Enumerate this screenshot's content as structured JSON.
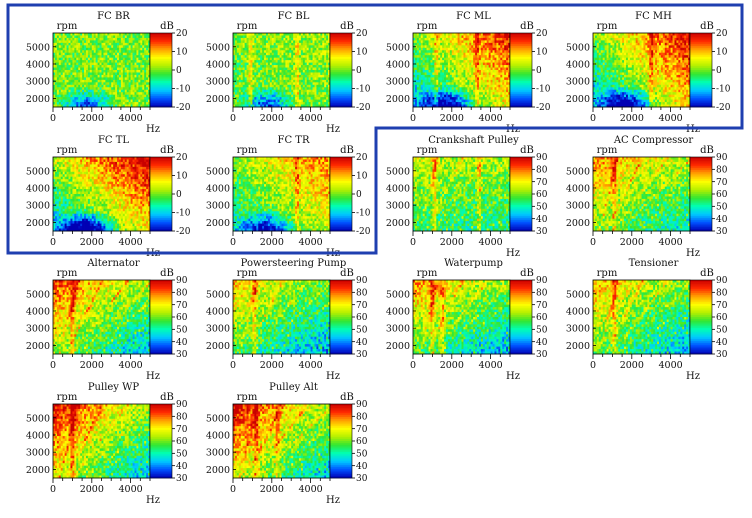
{
  "accent": {
    "highlight_frame": "#1f3fb0"
  },
  "colormap": [
    "#0000b4",
    "#0050ff",
    "#00c8ff",
    "#00ffb4",
    "#32e632",
    "#b4f000",
    "#ffff00",
    "#ffa000",
    "#ff2800",
    "#c80000"
  ],
  "chart_data": [
    {
      "type": "heatmap",
      "title": "FC BR",
      "xlabel": "Hz",
      "ylabel": "rpm",
      "colorbar_label": "dB",
      "x_ticks": [
        0,
        2000,
        4000
      ],
      "y_ticks": [
        2000,
        3000,
        4000,
        5000
      ],
      "xlim": [
        0,
        5000
      ],
      "ylim": [
        1500,
        5800
      ],
      "clim": [
        -20,
        20
      ],
      "colorbar_ticks": [
        -20,
        -10,
        0,
        10,
        20
      ],
      "highlighted": true,
      "pattern": {
        "mean": 0.0,
        "hf": 0.0,
        "hr": 0.0,
        "lowcorner": 0.7,
        "bands": [],
        "orders": 0
      }
    },
    {
      "type": "heatmap",
      "title": "FC BL",
      "xlabel": "Hz",
      "ylabel": "rpm",
      "colorbar_label": "dB",
      "x_ticks": [
        0,
        2000,
        4000
      ],
      "y_ticks": [
        2000,
        3000,
        4000,
        5000
      ],
      "xlim": [
        0,
        5000
      ],
      "ylim": [
        1500,
        5800
      ],
      "clim": [
        -20,
        20
      ],
      "colorbar_ticks": [
        -20,
        -10,
        0,
        10,
        20
      ],
      "highlighted": true,
      "pattern": {
        "mean": 0.0,
        "hf": 0.05,
        "hr": 0.05,
        "lowcorner": 0.7,
        "bands": [
          900,
          3300
        ],
        "orders": 0
      }
    },
    {
      "type": "heatmap",
      "title": "FC ML",
      "xlabel": "Hz",
      "ylabel": "rpm",
      "colorbar_label": "dB",
      "x_ticks": [
        0,
        2000,
        4000
      ],
      "y_ticks": [
        2000,
        3000,
        4000,
        5000
      ],
      "xlim": [
        0,
        5000
      ],
      "ylim": [
        1500,
        5800
      ],
      "clim": [
        -20,
        20
      ],
      "colorbar_ticks": [
        -20,
        -10,
        0,
        10,
        20
      ],
      "highlighted": true,
      "pattern": {
        "mean": 0.08,
        "hf": 0.45,
        "hr": 0.3,
        "lowcorner": 0.9,
        "bands": [
          1200,
          3300
        ],
        "orders": 0
      }
    },
    {
      "type": "heatmap",
      "title": "FC MH",
      "xlabel": "Hz",
      "ylabel": "rpm",
      "colorbar_label": "dB",
      "x_ticks": [
        0,
        2000,
        4000
      ],
      "y_ticks": [
        2000,
        3000,
        4000,
        5000
      ],
      "xlim": [
        0,
        5000
      ],
      "ylim": [
        1500,
        5800
      ],
      "clim": [
        -20,
        20
      ],
      "colorbar_ticks": [
        -20,
        -10,
        0,
        10,
        20
      ],
      "highlighted": true,
      "pattern": {
        "mean": 0.1,
        "hf": 0.5,
        "hr": 0.3,
        "lowcorner": 1.0,
        "bands": [
          3000
        ],
        "orders": 0
      }
    },
    {
      "type": "heatmap",
      "title": "FC TL",
      "xlabel": "Hz",
      "ylabel": "rpm",
      "colorbar_label": "dB",
      "x_ticks": [
        0,
        2000,
        4000
      ],
      "y_ticks": [
        2000,
        3000,
        4000,
        5000
      ],
      "xlim": [
        0,
        5000
      ],
      "ylim": [
        1500,
        5800
      ],
      "clim": [
        -20,
        20
      ],
      "colorbar_ticks": [
        -20,
        -10,
        0,
        10,
        20
      ],
      "highlighted": true,
      "pattern": {
        "mean": 0.12,
        "hf": 0.45,
        "hr": 0.4,
        "lowcorner": 1.0,
        "bands": [],
        "orders": 0
      }
    },
    {
      "type": "heatmap",
      "title": "FC TR",
      "xlabel": "Hz",
      "ylabel": "rpm",
      "colorbar_label": "dB",
      "x_ticks": [
        0,
        2000,
        4000
      ],
      "y_ticks": [
        2000,
        3000,
        4000,
        5000
      ],
      "xlim": [
        0,
        5000
      ],
      "ylim": [
        1500,
        5800
      ],
      "clim": [
        -20,
        20
      ],
      "colorbar_ticks": [
        -20,
        -10,
        0,
        10,
        20
      ],
      "highlighted": true,
      "pattern": {
        "mean": 0.06,
        "hf": 0.3,
        "hr": 0.25,
        "lowcorner": 0.8,
        "bands": [
          3300
        ],
        "orders": 0
      }
    },
    {
      "type": "heatmap",
      "title": "Crankshaft Pulley",
      "xlabel": "Hz",
      "ylabel": "rpm",
      "colorbar_label": "dB",
      "x_ticks": [
        0,
        2000,
        4000
      ],
      "y_ticks": [
        2000,
        3000,
        4000,
        5000
      ],
      "xlim": [
        0,
        5000
      ],
      "ylim": [
        1500,
        5800
      ],
      "clim": [
        30,
        90
      ],
      "colorbar_ticks": [
        30,
        40,
        50,
        60,
        70,
        80,
        90
      ],
      "highlighted": false,
      "pattern": {
        "mean": -0.05,
        "hf": 0.0,
        "hr": 0.2,
        "lowcorner": 0.0,
        "bands": [
          1100,
          3400
        ],
        "orders": 0.25
      }
    },
    {
      "type": "heatmap",
      "title": "AC Compressor",
      "xlabel": "Hz",
      "ylabel": "rpm",
      "colorbar_label": "dB",
      "x_ticks": [
        0,
        2000,
        4000
      ],
      "y_ticks": [
        2000,
        3000,
        4000,
        5000
      ],
      "xlim": [
        0,
        5000
      ],
      "ylim": [
        1500,
        5800
      ],
      "clim": [
        30,
        90
      ],
      "colorbar_ticks": [
        30,
        40,
        50,
        60,
        70,
        80,
        90
      ],
      "highlighted": false,
      "pattern": {
        "mean": 0.0,
        "hf": -0.15,
        "hr": 0.3,
        "lowcorner": 0.0,
        "bands": [
          1100
        ],
        "orders": 0.3
      }
    },
    {
      "type": "heatmap",
      "title": "Alternator",
      "xlabel": "Hz",
      "ylabel": "rpm",
      "colorbar_label": "dB",
      "x_ticks": [
        0,
        2000,
        4000
      ],
      "y_ticks": [
        2000,
        3000,
        4000,
        5000
      ],
      "xlim": [
        0,
        5000
      ],
      "ylim": [
        1500,
        5800
      ],
      "clim": [
        30,
        90
      ],
      "colorbar_ticks": [
        30,
        40,
        50,
        60,
        70,
        80,
        90
      ],
      "highlighted": false,
      "pattern": {
        "mean": 0.0,
        "hf": -0.25,
        "hr": 0.35,
        "lowcorner": 0.0,
        "bands": [
          1000
        ],
        "orders": 0.35
      }
    },
    {
      "type": "heatmap",
      "title": "Powersteering Pump",
      "xlabel": "Hz",
      "ylabel": "rpm",
      "colorbar_label": "dB",
      "x_ticks": [
        0,
        2000,
        4000
      ],
      "y_ticks": [
        2000,
        3000,
        4000,
        5000
      ],
      "xlim": [
        0,
        5000
      ],
      "ylim": [
        1500,
        5800
      ],
      "clim": [
        30,
        90
      ],
      "colorbar_ticks": [
        30,
        40,
        50,
        60,
        70,
        80,
        90
      ],
      "highlighted": false,
      "pattern": {
        "mean": -0.08,
        "hf": -0.2,
        "hr": 0.3,
        "lowcorner": 0.0,
        "bands": [
          1100
        ],
        "orders": 0.3
      }
    },
    {
      "type": "heatmap",
      "title": "Waterpump",
      "xlabel": "Hz",
      "ylabel": "rpm",
      "colorbar_label": "dB",
      "x_ticks": [
        0,
        2000,
        4000
      ],
      "y_ticks": [
        2000,
        3000,
        4000,
        5000
      ],
      "xlim": [
        0,
        5000
      ],
      "ylim": [
        1500,
        5800
      ],
      "clim": [
        30,
        90
      ],
      "colorbar_ticks": [
        30,
        40,
        50,
        60,
        70,
        80,
        90
      ],
      "highlighted": false,
      "pattern": {
        "mean": -0.05,
        "hf": -0.2,
        "hr": 0.35,
        "lowcorner": 0.0,
        "bands": [
          1000,
          1500
        ],
        "orders": 0.3
      }
    },
    {
      "type": "heatmap",
      "title": "Tensioner",
      "xlabel": "Hz",
      "ylabel": "rpm",
      "colorbar_label": "dB",
      "x_ticks": [
        0,
        2000,
        4000
      ],
      "y_ticks": [
        2000,
        3000,
        4000,
        5000
      ],
      "xlim": [
        0,
        5000
      ],
      "ylim": [
        1500,
        5800
      ],
      "clim": [
        30,
        90
      ],
      "colorbar_ticks": [
        30,
        40,
        50,
        60,
        70,
        80,
        90
      ],
      "highlighted": false,
      "pattern": {
        "mean": -0.05,
        "hf": -0.2,
        "hr": 0.3,
        "lowcorner": 0.0,
        "bands": [
          1100
        ],
        "orders": 0.3
      }
    },
    {
      "type": "heatmap",
      "title": "Pulley WP",
      "xlabel": "Hz",
      "ylabel": "rpm",
      "colorbar_label": "dB",
      "x_ticks": [
        0,
        2000,
        4000
      ],
      "y_ticks": [
        2000,
        3000,
        4000,
        5000
      ],
      "xlim": [
        0,
        5000
      ],
      "ylim": [
        1500,
        5800
      ],
      "clim": [
        30,
        90
      ],
      "colorbar_ticks": [
        30,
        40,
        50,
        60,
        70,
        80,
        90
      ],
      "highlighted": false,
      "pattern": {
        "mean": 0.05,
        "hf": -0.35,
        "hr": 0.35,
        "lowcorner": 0.0,
        "bands": [
          1000
        ],
        "orders": 0.3
      }
    },
    {
      "type": "heatmap",
      "title": "Pulley Alt",
      "xlabel": "Hz",
      "ylabel": "rpm",
      "colorbar_label": "dB",
      "x_ticks": [
        0,
        2000,
        4000
      ],
      "y_ticks": [
        2000,
        3000,
        4000,
        5000
      ],
      "xlim": [
        0,
        5000
      ],
      "ylim": [
        1500,
        5800
      ],
      "clim": [
        30,
        90
      ],
      "colorbar_ticks": [
        30,
        40,
        50,
        60,
        70,
        80,
        90
      ],
      "highlighted": false,
      "pattern": {
        "mean": 0.05,
        "hf": -0.35,
        "hr": 0.35,
        "lowcorner": 0.0,
        "bands": [
          1200,
          2300
        ],
        "orders": 0.3
      }
    }
  ]
}
